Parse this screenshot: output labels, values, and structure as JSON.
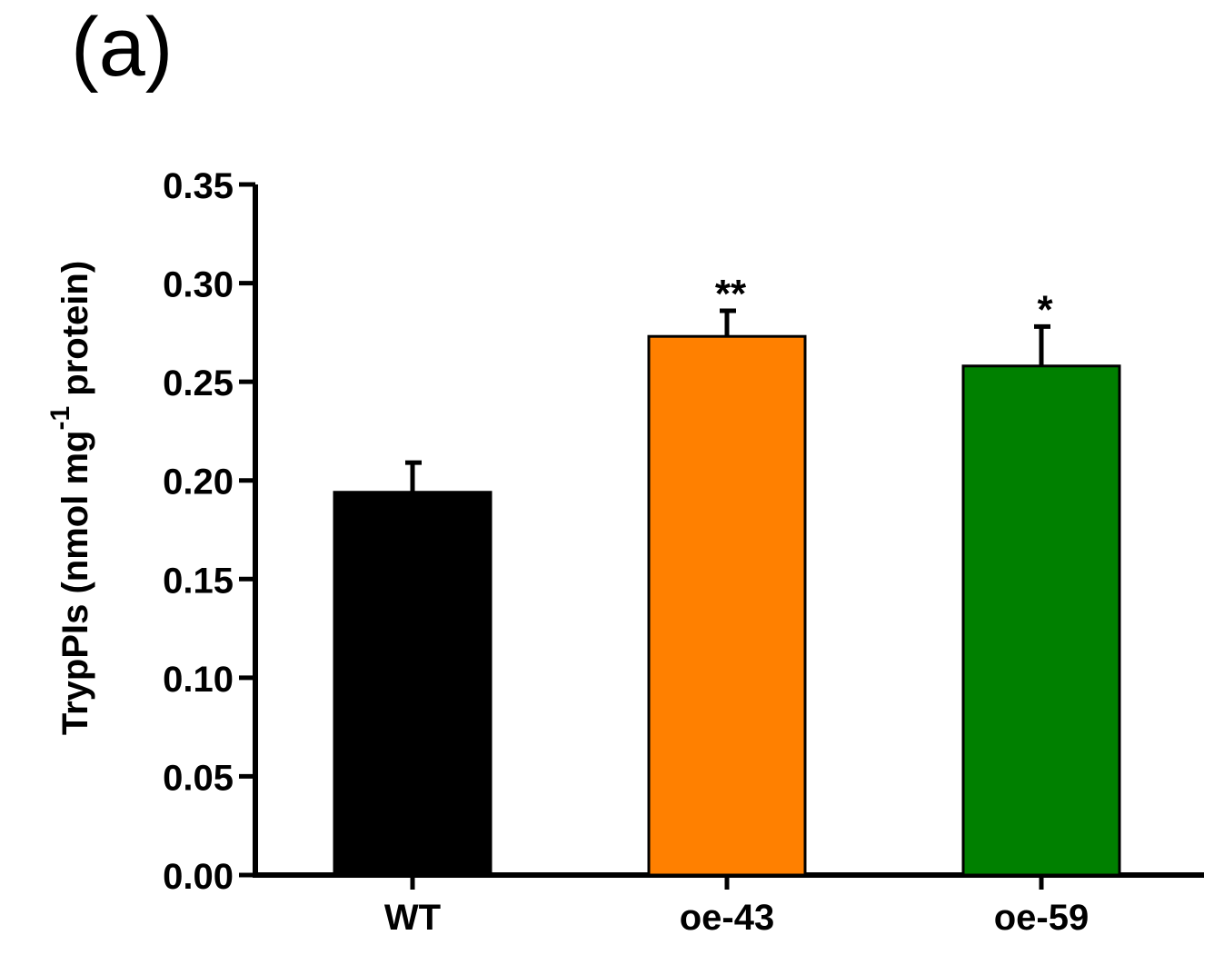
{
  "panel_label": "(a)",
  "chart_data": {
    "type": "bar",
    "title": "",
    "categories": [
      "WT",
      "oe-43",
      "oe-59"
    ],
    "values": [
      0.194,
      0.273,
      0.258
    ],
    "errors": [
      0.015,
      0.013,
      0.02
    ],
    "significance": [
      "",
      "**",
      "*"
    ],
    "colors": [
      "#000000",
      "#ff8000",
      "#008000"
    ],
    "xlabel": "",
    "ylabel_main": "TrypPIs (nmol mg",
    "ylabel_sup": "-1",
    "ylabel_tail": " protein)",
    "ylim": [
      0,
      0.35
    ],
    "yticks": [
      "0.00",
      "0.05",
      "0.10",
      "0.15",
      "0.20",
      "0.25",
      "0.30",
      "0.35"
    ],
    "grid": false,
    "legend": "none"
  }
}
